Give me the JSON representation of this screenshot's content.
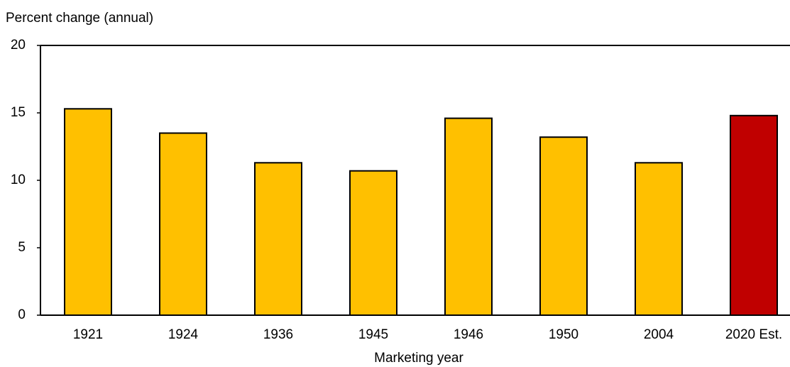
{
  "chart_data": {
    "type": "bar",
    "title": "Percent change (annual)",
    "x_label": "Marketing year",
    "categories": [
      "1921",
      "1924",
      "1936",
      "1945",
      "1946",
      "1950",
      "2004",
      "2020 Est."
    ],
    "values": [
      15.3,
      13.5,
      11.3,
      10.7,
      14.6,
      13.2,
      11.3,
      14.8
    ],
    "colors": [
      "#ffc000",
      "#ffc000",
      "#ffc000",
      "#ffc000",
      "#ffc000",
      "#ffc000",
      "#ffc000",
      "#c00000"
    ],
    "ylim": [
      0,
      20
    ],
    "yticks": [
      0,
      5,
      10,
      15,
      20
    ],
    "grid": false
  }
}
